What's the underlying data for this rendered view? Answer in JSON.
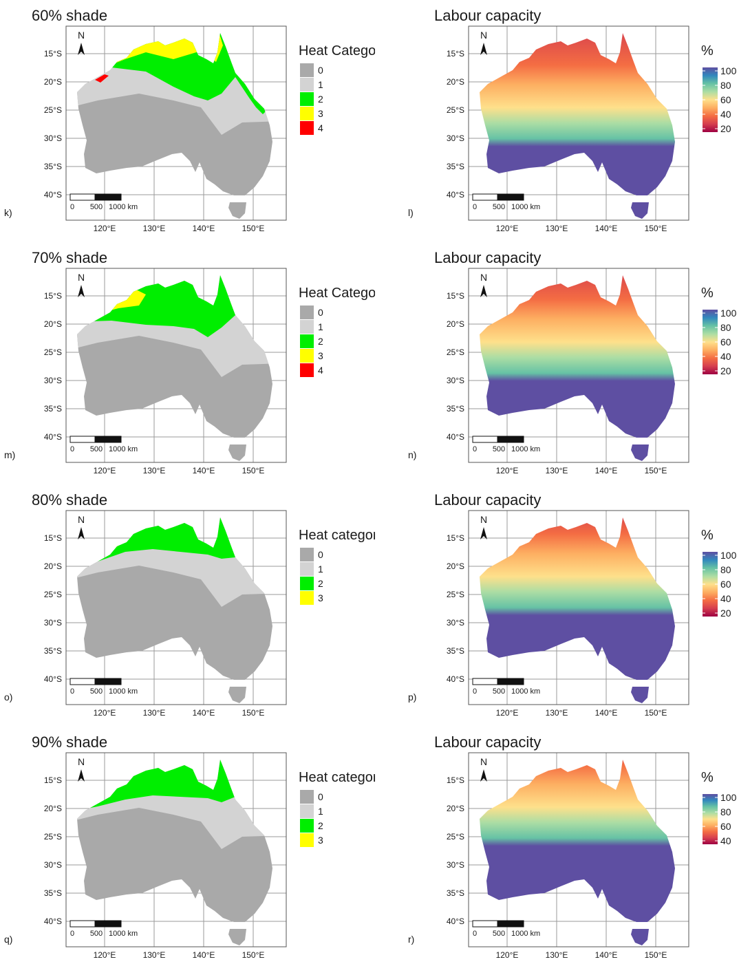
{
  "axes": {
    "lat_labels": [
      "15°S",
      "20°S",
      "25°S",
      "30°S",
      "35°S",
      "40°S"
    ],
    "lon_labels": [
      "120°E",
      "130°E",
      "140°E",
      "150°E"
    ]
  },
  "north_arrow_label": "N",
  "scale_bar": {
    "labels": [
      "0",
      "500",
      "1000 km"
    ]
  },
  "colors": {
    "cat0": "#a9a9a9",
    "cat1": "#d3d3d3",
    "cat2": "#00ee00",
    "cat3": "#ffff00",
    "cat4": "#ff0000",
    "ramp": [
      "#5e4fa2",
      "#3288bd",
      "#66c2a5",
      "#abdda4",
      "#fee08b",
      "#fdae61",
      "#f46d43",
      "#d53e4f",
      "#9e0142"
    ]
  },
  "rows": [
    {
      "left": {
        "title": "60% shade",
        "panel_label": "k)",
        "legend_title": "Heat Category",
        "legend_items": [
          {
            "label": "0",
            "color": "#a9a9a9"
          },
          {
            "label": "1",
            "color": "#d3d3d3"
          },
          {
            "label": "2",
            "color": "#00ee00"
          },
          {
            "label": "3",
            "color": "#ffff00"
          },
          {
            "label": "4",
            "color": "#ff0000"
          }
        ]
      },
      "right": {
        "title": "Labour capacity",
        "panel_label": "l)",
        "legend_title": "%",
        "legend_ticks": [
          "100",
          "80",
          "60",
          "40",
          "20"
        ]
      }
    },
    {
      "left": {
        "title": "70% shade",
        "panel_label": "m)",
        "legend_title": "Heat Category",
        "legend_items": [
          {
            "label": "0",
            "color": "#a9a9a9"
          },
          {
            "label": "1",
            "color": "#d3d3d3"
          },
          {
            "label": "2",
            "color": "#00ee00"
          },
          {
            "label": "3",
            "color": "#ffff00"
          },
          {
            "label": "4",
            "color": "#ff0000"
          }
        ]
      },
      "right": {
        "title": "Labour capacity",
        "panel_label": "n)",
        "legend_title": "%",
        "legend_ticks": [
          "100",
          "80",
          "60",
          "40",
          "20"
        ]
      }
    },
    {
      "left": {
        "title": "80% shade",
        "panel_label": "o)",
        "legend_title": "Heat category",
        "legend_items": [
          {
            "label": "0",
            "color": "#a9a9a9"
          },
          {
            "label": "1",
            "color": "#d3d3d3"
          },
          {
            "label": "2",
            "color": "#00ee00"
          },
          {
            "label": "3",
            "color": "#ffff00"
          }
        ]
      },
      "right": {
        "title": "Labour capacity",
        "panel_label": "p)",
        "legend_title": "%",
        "legend_ticks": [
          "100",
          "80",
          "60",
          "40",
          "20"
        ]
      }
    },
    {
      "left": {
        "title": "90% shade",
        "panel_label": "q)",
        "legend_title": "Heat category",
        "legend_items": [
          {
            "label": "0",
            "color": "#a9a9a9"
          },
          {
            "label": "1",
            "color": "#d3d3d3"
          },
          {
            "label": "2",
            "color": "#00ee00"
          },
          {
            "label": "3",
            "color": "#ffff00"
          }
        ]
      },
      "right": {
        "title": "Labour capacity",
        "panel_label": "r)",
        "legend_title": "%",
        "legend_ticks": [
          "100",
          "80",
          "60",
          "40"
        ]
      }
    }
  ]
}
